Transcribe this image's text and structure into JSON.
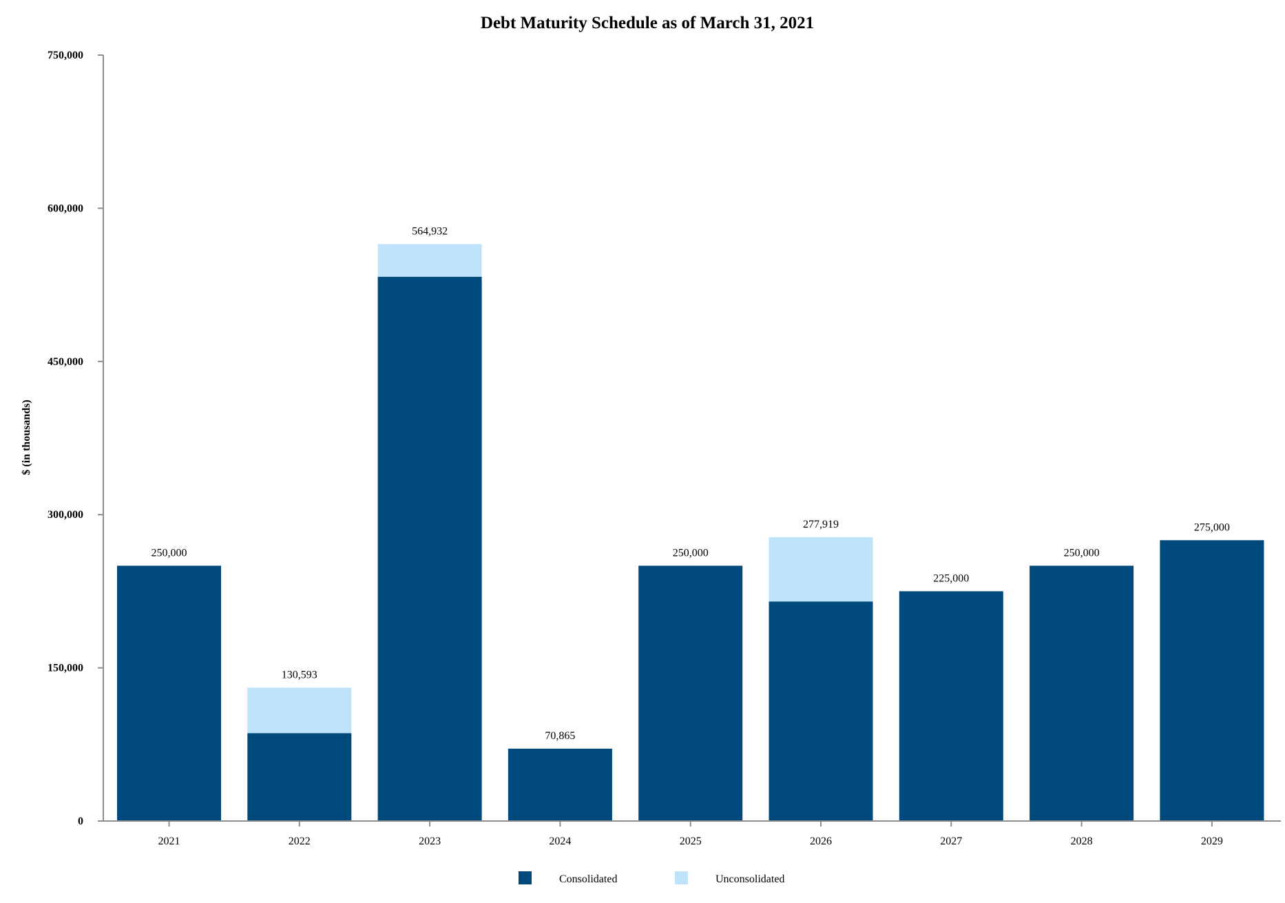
{
  "chart_data": {
    "type": "bar",
    "stacked": true,
    "title": "Debt Maturity Schedule as of March 31, 2021",
    "xlabel": "",
    "ylabel": "$ (in thousands)",
    "ylim": [
      0,
      750000
    ],
    "yticks": [
      0,
      150000,
      300000,
      450000,
      600000,
      750000
    ],
    "ytick_labels": [
      "0",
      "150,000",
      "300,000",
      "450,000",
      "600,000",
      "750,000"
    ],
    "grid": false,
    "legend_position": "bottom-center",
    "categories": [
      "2021",
      "2022",
      "2023",
      "2024",
      "2025",
      "2026",
      "2027",
      "2028",
      "2029"
    ],
    "series": [
      {
        "name": "Consolidated",
        "color": "#00497d",
        "values": [
          250000,
          86000,
          533000,
          70865,
          250000,
          215000,
          225000,
          250000,
          275000
        ]
      },
      {
        "name": "Unconsolidated",
        "color": "#bee3fb",
        "values": [
          0,
          44593,
          31932,
          0,
          0,
          62919,
          0,
          0,
          0
        ]
      }
    ],
    "totals": [
      250000,
      130593,
      564932,
      70865,
      250000,
      277919,
      225000,
      250000,
      275000
    ],
    "total_labels": [
      "250,000",
      "130,593",
      "564,932",
      "70,865",
      "250,000",
      "277,919",
      "225,000",
      "250,000",
      "275,000"
    ]
  }
}
